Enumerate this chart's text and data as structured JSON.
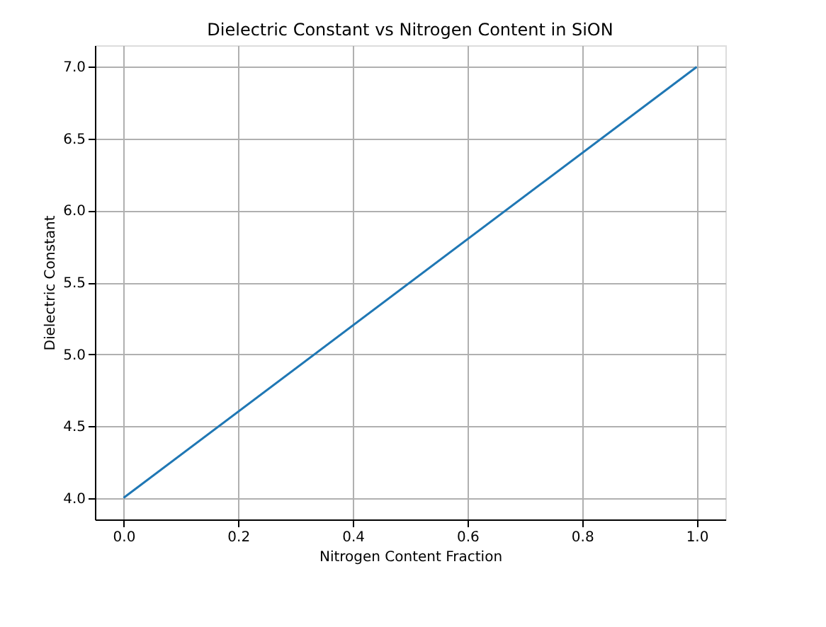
{
  "chart_data": {
    "type": "line",
    "title": "Dielectric Constant vs Nitrogen Content in SiON",
    "xlabel": "Nitrogen Content Fraction",
    "ylabel": "Dielectric Constant",
    "x": [
      0,
      1
    ],
    "series": [
      {
        "color": "#1f77b4",
        "values": [
          4,
          7
        ]
      }
    ],
    "xlim": [
      -0.05,
      1.05
    ],
    "ylim": [
      3.85,
      7.15
    ],
    "xticks": [
      {
        "value": 0,
        "label": "0.0"
      },
      {
        "value": 0.2,
        "label": "0.2"
      },
      {
        "value": 0.4,
        "label": "0.4"
      },
      {
        "value": 0.6,
        "label": "0.6"
      },
      {
        "value": 0.8,
        "label": "0.8"
      },
      {
        "value": 1,
        "label": "1.0"
      }
    ],
    "yticks": [
      {
        "value": 4,
        "label": "4.0"
      },
      {
        "value": 4.5,
        "label": "4.5"
      },
      {
        "value": 5,
        "label": "5.0"
      },
      {
        "value": 5.5,
        "label": "5.5"
      },
      {
        "value": 6,
        "label": "6.0"
      },
      {
        "value": 6.5,
        "label": "6.5"
      },
      {
        "value": 7,
        "label": "7.0"
      }
    ],
    "grid": true,
    "marker": "none",
    "line_style": "solid"
  }
}
